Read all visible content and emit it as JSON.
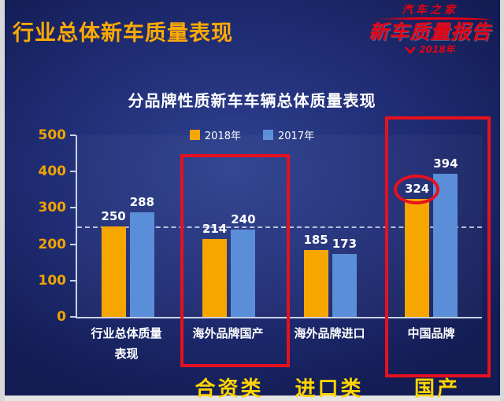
{
  "header": {
    "title": "行业总体新车质量表现",
    "logo": {
      "brand": "汽车之家",
      "report": "新车质量报告",
      "year": "2018年"
    }
  },
  "chart_data": {
    "type": "bar",
    "title": "分品牌性质新车车辆总体质量表现",
    "categories": [
      "行业总体质量表现",
      "海外品牌国产",
      "海外品牌进口",
      "中国品牌"
    ],
    "series": [
      {
        "name": "2018年",
        "color": "#f7a600",
        "values": [
          250,
          214,
          185,
          324
        ]
      },
      {
        "name": "2017年",
        "color": "#5b8ed8",
        "values": [
          288,
          240,
          173,
          394
        ]
      }
    ],
    "ylim": [
      0,
      500
    ],
    "yticks": [
      0,
      100,
      200,
      300,
      400,
      500
    ],
    "reference_line_y": 250,
    "legend_position": "top-center",
    "grid": false,
    "annotations": {
      "highlight_color": "#e8101e",
      "label_color": "#ffd400",
      "highlight_boxes": [
        "海外品牌国产",
        "中国品牌"
      ],
      "circled_value": 324,
      "bottom_labels": [
        {
          "text": "合资类",
          "under": "海外品牌国产"
        },
        {
          "text": "进口类",
          "under": "海外品牌进口"
        },
        {
          "text": "国产",
          "under": "中国品牌"
        }
      ]
    }
  }
}
